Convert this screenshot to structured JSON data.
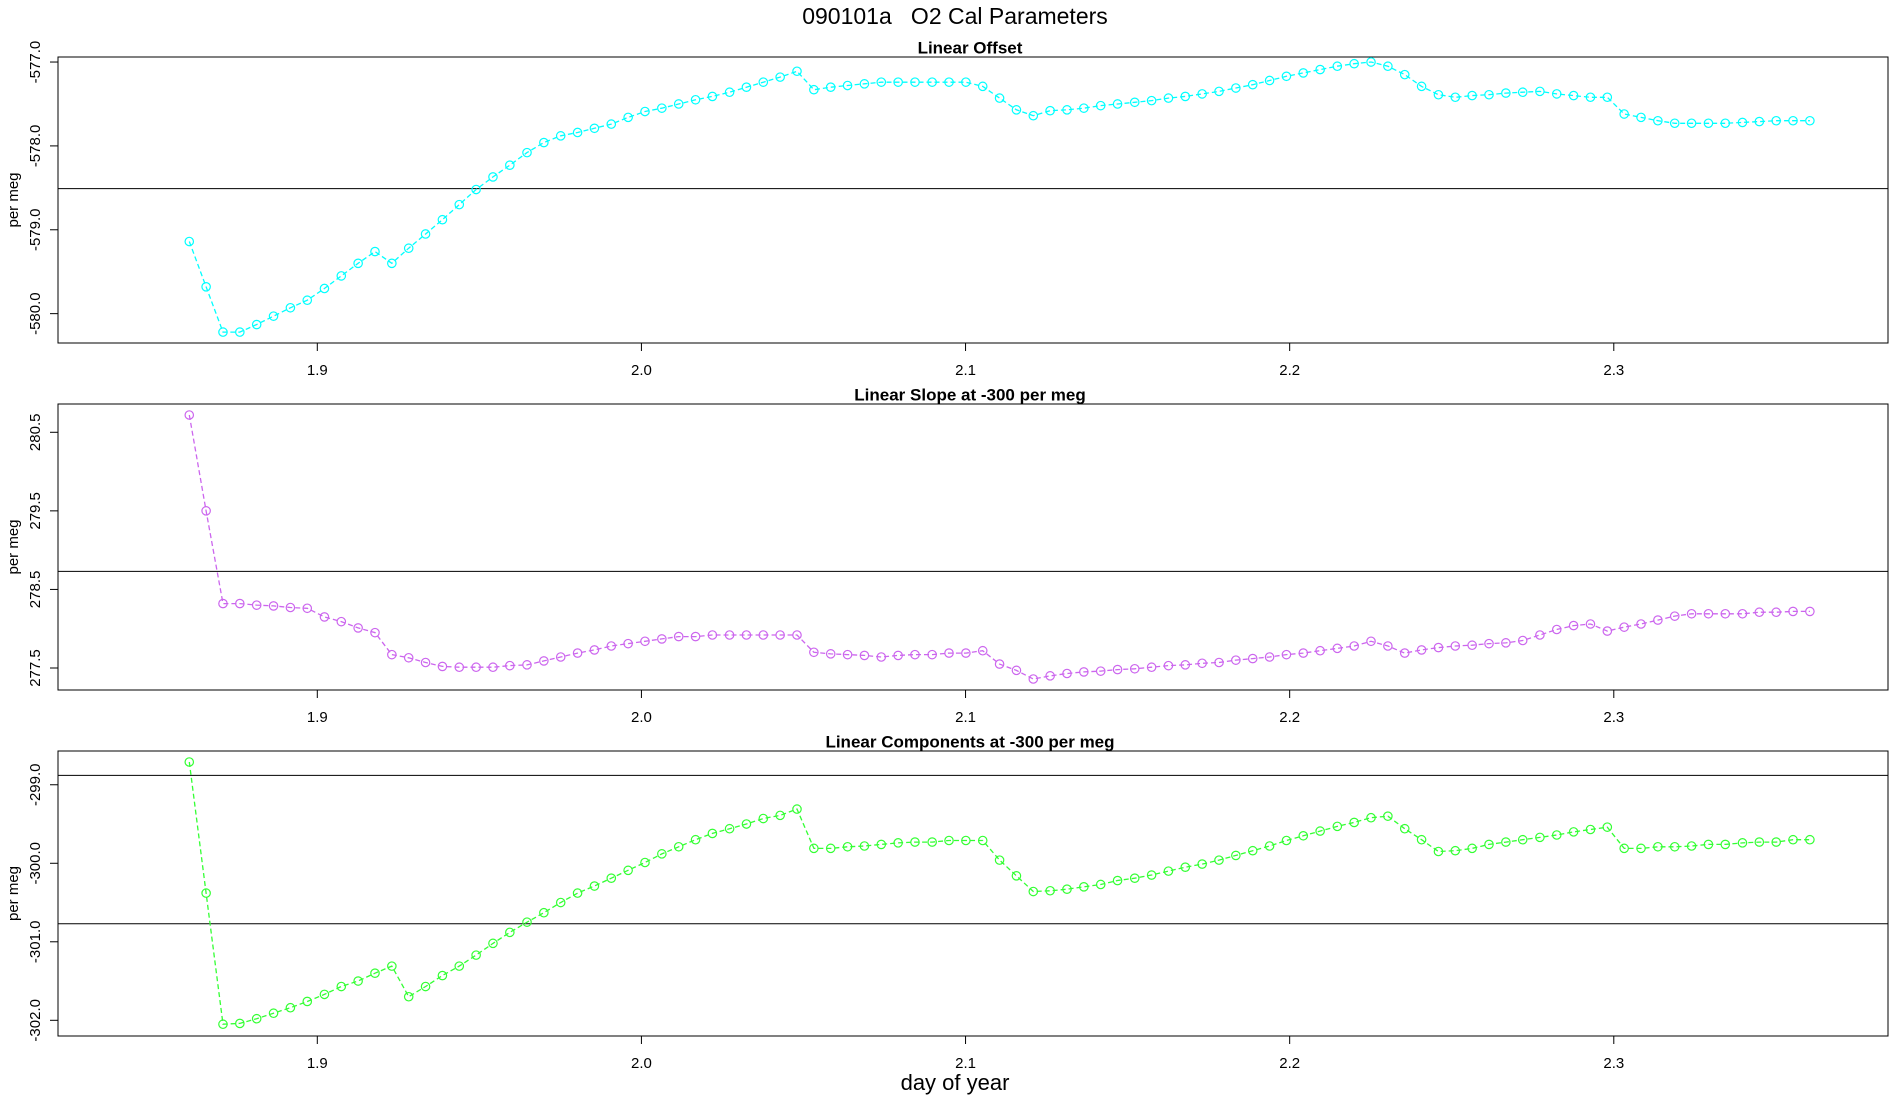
{
  "chart_data": [
    {
      "type": "line",
      "suptitle": "090101a   O2 Cal Parameters",
      "title": "Linear Offset",
      "ylabel": "per meg",
      "color": "#00ffff",
      "x": [
        1.8605,
        1.8657,
        1.8709,
        1.8761,
        1.8813,
        1.8865,
        1.8917,
        1.8969,
        1.9022,
        1.9074,
        1.9126,
        1.9178,
        1.923,
        1.9282,
        1.9334,
        1.9386,
        1.9438,
        1.949,
        1.9542,
        1.9594,
        1.9647,
        1.9699,
        1.9751,
        1.9803,
        1.9855,
        1.9907,
        1.9959,
        2.0011,
        2.0063,
        2.0115,
        2.0167,
        2.0219,
        2.0272,
        2.0324,
        2.0376,
        2.0428,
        2.048,
        2.0532,
        2.0584,
        2.0636,
        2.0688,
        2.074,
        2.0792,
        2.0844,
        2.0897,
        2.0949,
        2.1001,
        2.1053,
        2.1105,
        2.1157,
        2.1209,
        2.1261,
        2.1313,
        2.1365,
        2.1417,
        2.1469,
        2.1522,
        2.1574,
        2.1626,
        2.1678,
        2.173,
        2.1782,
        2.1834,
        2.1886,
        2.1938,
        2.199,
        2.2042,
        2.2094,
        2.2147,
        2.2199,
        2.2251,
        2.2303,
        2.2355,
        2.2407,
        2.2459,
        2.2511,
        2.2563,
        2.2615,
        2.2667,
        2.2719,
        2.2772,
        2.2824,
        2.2876,
        2.2928,
        2.298,
        2.3032,
        2.3084,
        2.3136,
        2.3188,
        2.324,
        2.3292,
        2.3344,
        2.3397,
        2.3449,
        2.3501,
        2.3553,
        2.3605
      ],
      "values": [
        -579.14,
        -579.68,
        -580.22,
        -580.22,
        -580.13,
        -580.03,
        -579.93,
        -579.84,
        -579.7,
        -579.55,
        -579.4,
        -579.26,
        -579.4,
        -579.22,
        -579.05,
        -578.88,
        -578.7,
        -578.52,
        -578.37,
        -578.23,
        -578.08,
        -577.96,
        -577.88,
        -577.84,
        -577.79,
        -577.74,
        -577.66,
        -577.59,
        -577.55,
        -577.5,
        -577.45,
        -577.41,
        -577.36,
        -577.3,
        -577.24,
        -577.18,
        -577.11,
        -577.33,
        -577.3,
        -577.28,
        -577.26,
        -577.24,
        -577.24,
        -577.24,
        -577.24,
        -577.24,
        -577.24,
        -577.29,
        -577.43,
        -577.57,
        -577.64,
        -577.58,
        -577.57,
        -577.55,
        -577.52,
        -577.5,
        -577.48,
        -577.46,
        -577.43,
        -577.41,
        -577.38,
        -577.35,
        -577.31,
        -577.27,
        -577.22,
        -577.17,
        -577.13,
        -577.09,
        -577.05,
        -577.02,
        -577.0,
        -577.05,
        -577.15,
        -577.29,
        -577.39,
        -577.42,
        -577.4,
        -577.39,
        -577.37,
        -577.36,
        -577.35,
        -577.38,
        -577.4,
        -577.42,
        -577.42,
        -577.62,
        -577.66,
        -577.7,
        -577.73,
        -577.73,
        -577.73,
        -577.73,
        -577.72,
        -577.71,
        -577.7,
        -577.7,
        -577.7
      ],
      "hlines": [
        -578.51
      ],
      "xlim": [
        1.82,
        2.3846
      ],
      "xticks": [
        1.9,
        {
          "value": 2,
          "label": "2.0"
        },
        2.1,
        2.2,
        2.3
      ],
      "ylim": [
        -580.35,
        -576.94
      ],
      "yticks": [
        {
          "value": -577,
          "label": "-577.0"
        },
        {
          "value": -578,
          "label": "-578.0"
        },
        {
          "value": -579,
          "label": "-579.0"
        },
        {
          "value": -580,
          "label": "-580.0"
        }
      ]
    },
    {
      "type": "line",
      "title": "Linear Slope at -300 per meg",
      "ylabel": "per meg",
      "color": "#cc66ee",
      "x": [
        1.8605,
        1.8657,
        1.8709,
        1.8761,
        1.8813,
        1.8865,
        1.8917,
        1.8969,
        1.9022,
        1.9074,
        1.9126,
        1.9178,
        1.923,
        1.9282,
        1.9334,
        1.9386,
        1.9438,
        1.949,
        1.9542,
        1.9594,
        1.9647,
        1.9699,
        1.9751,
        1.9803,
        1.9855,
        1.9907,
        1.9959,
        2.0011,
        2.0063,
        2.0115,
        2.0167,
        2.0219,
        2.0272,
        2.0324,
        2.0376,
        2.0428,
        2.048,
        2.0532,
        2.0584,
        2.0636,
        2.0688,
        2.074,
        2.0792,
        2.0844,
        2.0897,
        2.0949,
        2.1001,
        2.1053,
        2.1105,
        2.1157,
        2.1209,
        2.1261,
        2.1313,
        2.1365,
        2.1417,
        2.1469,
        2.1522,
        2.1574,
        2.1626,
        2.1678,
        2.173,
        2.1782,
        2.1834,
        2.1886,
        2.1938,
        2.199,
        2.2042,
        2.2094,
        2.2147,
        2.2199,
        2.2251,
        2.2303,
        2.2355,
        2.2407,
        2.2459,
        2.2511,
        2.2563,
        2.2615,
        2.2667,
        2.2719,
        2.2772,
        2.2824,
        2.2876,
        2.2928,
        2.298,
        2.3032,
        2.3084,
        2.3136,
        2.3188,
        2.324,
        2.3292,
        2.3344,
        2.3397,
        2.3449,
        2.3501,
        2.3553,
        2.3605
      ],
      "values": [
        280.72,
        279.5,
        278.32,
        278.32,
        278.3,
        278.29,
        278.27,
        278.26,
        278.15,
        278.09,
        278.01,
        277.95,
        277.67,
        277.63,
        277.57,
        277.52,
        277.51,
        277.51,
        277.51,
        277.53,
        277.54,
        277.59,
        277.64,
        277.69,
        277.73,
        277.78,
        277.81,
        277.84,
        277.87,
        277.9,
        277.9,
        277.92,
        277.92,
        277.92,
        277.92,
        277.92,
        277.92,
        277.7,
        277.68,
        277.67,
        277.66,
        277.64,
        277.66,
        277.67,
        277.67,
        277.69,
        277.69,
        277.72,
        277.55,
        277.47,
        277.36,
        277.4,
        277.43,
        277.45,
        277.46,
        277.48,
        277.49,
        277.51,
        277.53,
        277.54,
        277.56,
        277.57,
        277.6,
        277.62,
        277.64,
        277.67,
        277.69,
        277.72,
        277.75,
        277.78,
        277.84,
        277.78,
        277.69,
        277.73,
        277.76,
        277.78,
        277.79,
        277.81,
        277.82,
        277.85,
        277.92,
        277.99,
        278.04,
        278.06,
        277.97,
        278.02,
        278.06,
        278.11,
        278.16,
        278.19,
        278.19,
        278.19,
        278.19,
        278.21,
        278.21,
        278.22,
        278.22
      ],
      "hlines": [
        278.73
      ],
      "xlim": [
        1.82,
        2.3846
      ],
      "xticks": [
        1.9,
        {
          "value": 2,
          "label": "2.0"
        },
        2.1,
        2.2,
        2.3
      ],
      "ylim": [
        277.22,
        280.86
      ],
      "yticks": [
        277.5,
        278.5,
        279.5,
        280.5
      ]
    },
    {
      "type": "line",
      "title": "Linear Components at -300 per meg",
      "ylabel": "per meg",
      "xlabel": "day of year",
      "color": "#33ff33",
      "x": [
        1.8605,
        1.8657,
        1.8709,
        1.8761,
        1.8813,
        1.8865,
        1.8917,
        1.8969,
        1.9022,
        1.9074,
        1.9126,
        1.9178,
        1.923,
        1.9282,
        1.9334,
        1.9386,
        1.9438,
        1.949,
        1.9542,
        1.9594,
        1.9647,
        1.9699,
        1.9751,
        1.9803,
        1.9855,
        1.9907,
        1.9959,
        2.0011,
        2.0063,
        2.0115,
        2.0167,
        2.0219,
        2.0272,
        2.0324,
        2.0376,
        2.0428,
        2.048,
        2.0532,
        2.0584,
        2.0636,
        2.0688,
        2.074,
        2.0792,
        2.0844,
        2.0897,
        2.0949,
        2.1001,
        2.1053,
        2.1105,
        2.1157,
        2.1209,
        2.1261,
        2.1313,
        2.1365,
        2.1417,
        2.1469,
        2.1522,
        2.1574,
        2.1626,
        2.1678,
        2.173,
        2.1782,
        2.1834,
        2.1886,
        2.1938,
        2.199,
        2.2042,
        2.2094,
        2.2147,
        2.2199,
        2.2251,
        2.2303,
        2.2355,
        2.2407,
        2.2459,
        2.2511,
        2.2563,
        2.2615,
        2.2667,
        2.2719,
        2.2772,
        2.2824,
        2.2876,
        2.2928,
        2.298,
        2.3032,
        2.3084,
        2.3136,
        2.3188,
        2.324,
        2.3292,
        2.3344,
        2.3397,
        2.3449,
        2.3501,
        2.3553,
        2.3605
      ],
      "values": [
        -298.71,
        -300.38,
        -302.05,
        -302.04,
        -301.98,
        -301.91,
        -301.84,
        -301.76,
        -301.67,
        -301.57,
        -301.5,
        -301.4,
        -301.31,
        -301.7,
        -301.57,
        -301.43,
        -301.31,
        -301.17,
        -301.02,
        -300.88,
        -300.75,
        -300.63,
        -300.5,
        -300.38,
        -300.29,
        -300.19,
        -300.09,
        -299.99,
        -299.88,
        -299.79,
        -299.7,
        -299.62,
        -299.56,
        -299.5,
        -299.43,
        -299.39,
        -299.31,
        -299.81,
        -299.81,
        -299.79,
        -299.78,
        -299.76,
        -299.74,
        -299.73,
        -299.73,
        -299.71,
        -299.71,
        -299.71,
        -299.96,
        -300.16,
        -300.36,
        -300.35,
        -300.33,
        -300.3,
        -300.27,
        -300.22,
        -300.19,
        -300.15,
        -300.1,
        -300.05,
        -300.01,
        -299.96,
        -299.9,
        -299.84,
        -299.78,
        -299.71,
        -299.65,
        -299.59,
        -299.53,
        -299.48,
        -299.42,
        -299.4,
        -299.56,
        -299.7,
        -299.85,
        -299.84,
        -299.81,
        -299.76,
        -299.73,
        -299.7,
        -299.67,
        -299.64,
        -299.6,
        -299.57,
        -299.54,
        -299.81,
        -299.81,
        -299.79,
        -299.79,
        -299.78,
        -299.76,
        -299.76,
        -299.74,
        -299.73,
        -299.73,
        -299.7,
        -299.7
      ],
      "hlines": [
        -298.88,
        -300.77
      ],
      "xlim": [
        1.82,
        2.3846
      ],
      "xticks": [
        1.9,
        {
          "value": 2,
          "label": "2.0"
        },
        2.1,
        2.2,
        2.3
      ],
      "ylim": [
        -302.2,
        -298.57
      ],
      "yticks": [
        {
          "value": -299,
          "label": "-299.0"
        },
        {
          "value": -300,
          "label": "-300.0"
        },
        {
          "value": -301,
          "label": "-301.0"
        },
        {
          "value": -302,
          "label": "-302.0"
        }
      ]
    }
  ]
}
